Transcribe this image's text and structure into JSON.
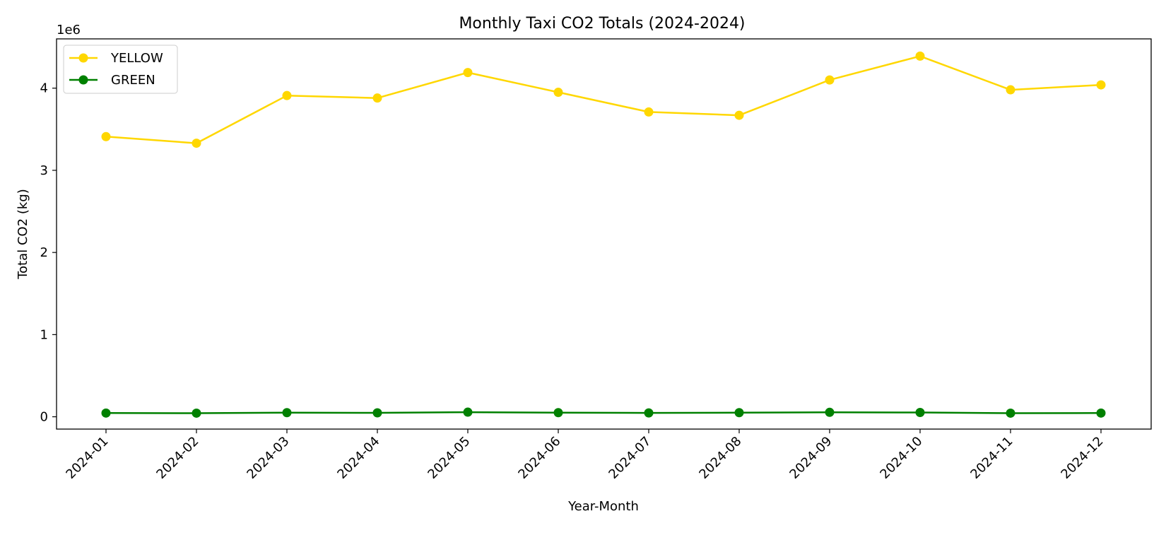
{
  "chart_data": {
    "type": "line",
    "title": "Monthly Taxi CO2 Totals (2024-2024)",
    "xlabel": "Year-Month",
    "ylabel": "Total CO2 (kg)",
    "y_scale_label": "1e6",
    "y_scale_factor": 1000000,
    "ylim": [
      -150000,
      4600000
    ],
    "yticks": [
      0,
      1000000,
      2000000,
      3000000,
      4000000
    ],
    "ytick_labels": [
      "0",
      "1",
      "2",
      "3",
      "4"
    ],
    "categories": [
      "2024-01",
      "2024-02",
      "2024-03",
      "2024-04",
      "2024-05",
      "2024-06",
      "2024-07",
      "2024-08",
      "2024-09",
      "2024-10",
      "2024-11",
      "2024-12"
    ],
    "legend_position": "top-left",
    "grid": false,
    "series": [
      {
        "name": "YELLOW",
        "color": "#FFD700",
        "values": [
          3410000,
          3330000,
          3910000,
          3880000,
          4190000,
          3950000,
          3710000,
          3670000,
          4100000,
          4390000,
          3980000,
          4040000
        ]
      },
      {
        "name": "GREEN",
        "color": "#008000",
        "values": [
          45000,
          44000,
          50000,
          48000,
          56000,
          50000,
          47000,
          50000,
          54000,
          52000,
          44000,
          45000
        ]
      }
    ]
  }
}
